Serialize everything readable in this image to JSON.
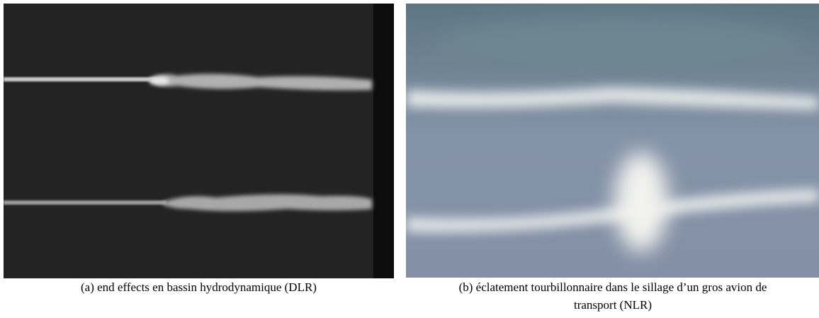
{
  "figures": [
    {
      "caption": "(a) end effects en bassin hydrodynamique (DLR)"
    },
    {
      "caption": "(b) éclatement tourbillonnaire dans le sillage d’un gros avion de transport (NLR)"
    }
  ]
}
